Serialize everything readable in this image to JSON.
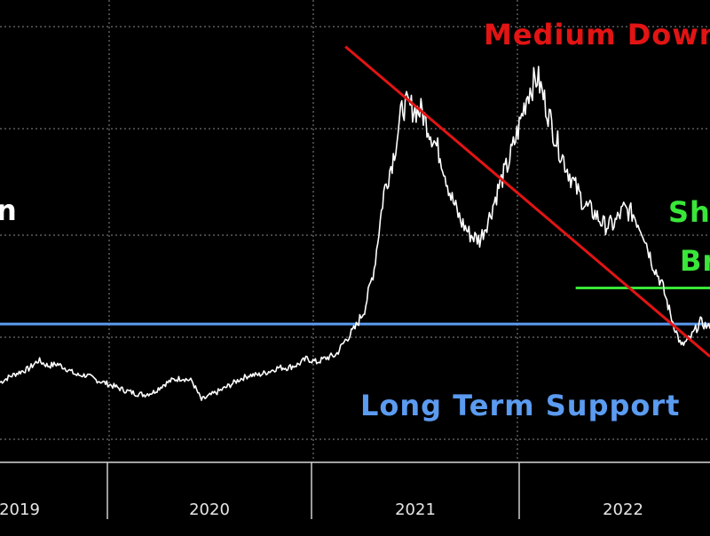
{
  "chart_data": {
    "type": "line",
    "title": "n",
    "xlabel": "",
    "ylabel": "",
    "x_ticks": [
      "2019",
      "2020",
      "2021",
      "2022"
    ],
    "grid": true,
    "legend": "none",
    "colors": {
      "background": "#000000",
      "price_line": "#ffffff",
      "grid": "#8a8a8a",
      "support_line": "#5b9bf0",
      "downtrend_line": "#e31414",
      "breakout_line": "#39e639",
      "tick_label": "#e6e6e6"
    },
    "x_range": [
      2018.9,
      2022.6
    ],
    "y_range": [
      0,
      100
    ],
    "series": [
      {
        "x": [
          2018.9,
          2018.95,
          2019.0,
          2019.05,
          2019.1,
          2019.15,
          2019.2,
          2019.25,
          2019.3,
          2019.35,
          2019.4,
          2019.45,
          2019.5,
          2019.55,
          2019.6,
          2019.65,
          2019.7,
          2019.75,
          2019.8,
          2019.85,
          2019.9,
          2019.95,
          2020.0,
          2020.05,
          2020.1,
          2020.15,
          2020.2,
          2020.25,
          2020.3,
          2020.35,
          2020.4,
          2020.45,
          2020.5,
          2020.55,
          2020.6,
          2020.65,
          2020.7,
          2020.75,
          2020.8,
          2020.85,
          2020.9,
          2020.95,
          2021.0,
          2021.05,
          2021.1,
          2021.15,
          2021.2,
          2021.25,
          2021.3,
          2021.35,
          2021.4,
          2021.45,
          2021.5,
          2021.55,
          2021.6,
          2021.65,
          2021.7,
          2021.75,
          2021.8,
          2021.85,
          2021.9,
          2021.95,
          2022.0,
          2022.05,
          2022.1,
          2022.15,
          2022.2,
          2022.25,
          2022.3,
          2022.35,
          2022.4,
          2022.45,
          2022.5,
          2022.55,
          2022.6
        ],
        "y": [
          14.8,
          16.4,
          17.6,
          18.6,
          20.9,
          19.4,
          19.9,
          18.5,
          16.8,
          16.8,
          15.5,
          14.6,
          13.6,
          12.6,
          11.8,
          11.4,
          12.1,
          14.1,
          15.5,
          16.0,
          15.2,
          9.9,
          11.3,
          12.6,
          14.1,
          15.7,
          16.8,
          16.9,
          17.8,
          18.9,
          18.9,
          19.7,
          21.4,
          20.4,
          21.6,
          22.4,
          26.5,
          29.8,
          35.1,
          46.5,
          67.4,
          77.5,
          91.7,
          91.0,
          89.8,
          83.5,
          77.1,
          66.5,
          59.7,
          55.8,
          54.3,
          60.7,
          69.1,
          75.8,
          84.8,
          95.2,
          99.6,
          90.9,
          81.8,
          74.9,
          68.9,
          63.8,
          61.6,
          58.4,
          58.7,
          62.9,
          61.5,
          56.8,
          47.9,
          42.0,
          32.6,
          24.8,
          27.3,
          31.6,
          29.7
        ]
      }
    ],
    "annotations": [
      {
        "label": "Long Term Support",
        "type": "horizontal",
        "y": 31.0,
        "x_from": 2018.9,
        "x_to": 2022.6,
        "color": "#5b9bf0"
      },
      {
        "label": "Medium Downtrend",
        "type": "trend",
        "x_from": 2020.7,
        "y_from": 108.0,
        "x_to": 2022.6,
        "y_to": 22.0,
        "color": "#e31414"
      },
      {
        "label": "Sh",
        "type": "text",
        "color": "#39e639"
      },
      {
        "label": "Br",
        "type": "text",
        "color": "#39e639"
      },
      {
        "label": "",
        "type": "horizontal",
        "y": 41.0,
        "x_from": 2021.9,
        "x_to": 2022.6,
        "color": "#39e639"
      }
    ]
  }
}
